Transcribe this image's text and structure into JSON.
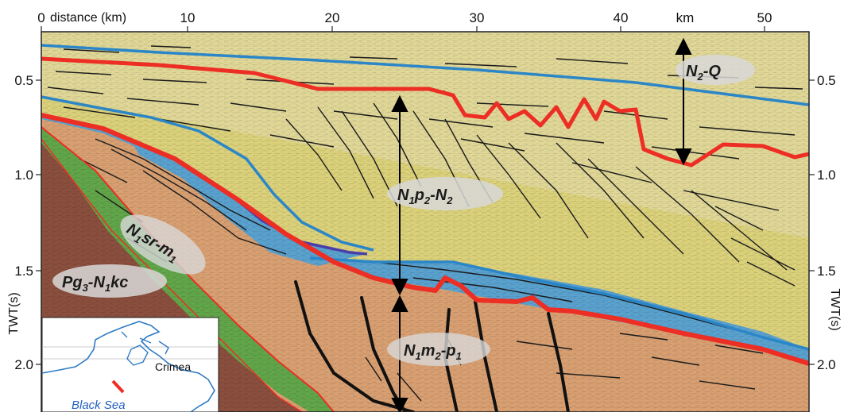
{
  "axes": {
    "top_title": "distance (km)",
    "top_unit": "km",
    "top_ticks": [
      "0",
      "10",
      "20",
      "30",
      "40",
      "50"
    ],
    "left_title": "TWT(s)",
    "right_title": "TWT(s)",
    "left_ticks": [
      "0.5",
      "1.0",
      "1.5",
      "2.0"
    ],
    "right_ticks": [
      "0.5",
      "1.0",
      "1.5",
      "2.0"
    ]
  },
  "units": {
    "n2q": {
      "main": "N",
      "sub1": "2",
      "rest": "-Q"
    },
    "n1p2n2": {
      "main": "N",
      "sub1": "1",
      "mid": "p",
      "sub2": "2",
      "rest": "-N",
      "sub3": "2"
    },
    "n1sr": {
      "main": "N",
      "sub1": "1",
      "mid": "sr-m",
      "sub2": "1"
    },
    "pg3": {
      "main": "Pg",
      "sub1": "3",
      "mid": "-N",
      "sub2": "1",
      "rest": "kc"
    },
    "n1m2": {
      "main": "N",
      "sub1": "1",
      "mid": "m",
      "sub2": "2",
      "rest": "-p",
      "sub3": "1"
    }
  },
  "inset_map": {
    "place": "Crimea",
    "sea": "Black Sea"
  },
  "colors": {
    "yellow_unit": "#d9cf77",
    "blue_unit": "#5aa2cf",
    "orange_unit": "#d9a072",
    "green_unit": "#62a64a",
    "brown_unit": "#8b4f3e",
    "red_horizon": "#ec2e24",
    "blue_horizon": "#2b86c8",
    "purple_horizon": "#4a3fa8"
  }
}
